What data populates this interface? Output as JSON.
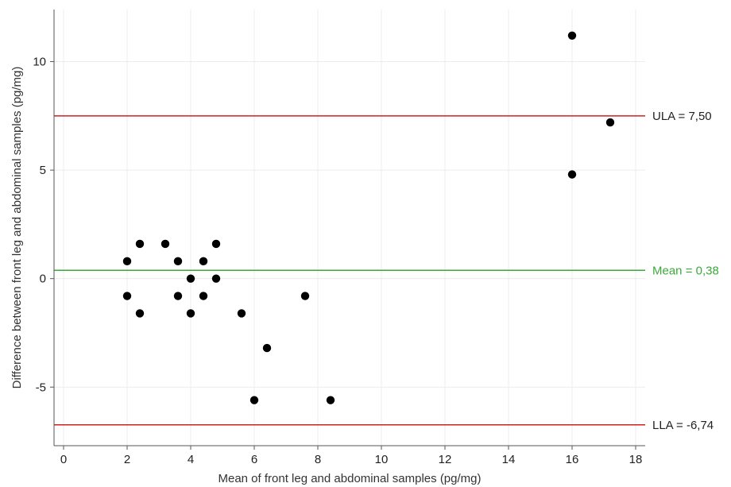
{
  "chart_data": {
    "type": "scatter",
    "title": "",
    "xlabel": "Mean of front leg and abdominal samples (pg/mg)",
    "ylabel": "Difference between front leg and abdominal samples (pg/mg)",
    "xlim": [
      -0.3,
      18.3
    ],
    "ylim": [
      -7.7,
      12.4
    ],
    "x_ticks": [
      0,
      2,
      4,
      6,
      8,
      10,
      12,
      14,
      16,
      18
    ],
    "y_ticks": [
      -5,
      0,
      5,
      10
    ],
    "x_tick_labels": [
      "0",
      "2",
      "4",
      "6",
      "8",
      "10",
      "12",
      "14",
      "16",
      "18"
    ],
    "y_tick_labels": [
      "-5",
      "0",
      "5",
      "10"
    ],
    "grid": true,
    "points": [
      {
        "x": 2.0,
        "y": 0.8
      },
      {
        "x": 2.0,
        "y": -0.8
      },
      {
        "x": 2.4,
        "y": 1.6
      },
      {
        "x": 2.4,
        "y": -1.6
      },
      {
        "x": 3.2,
        "y": 1.6
      },
      {
        "x": 3.6,
        "y": 0.8
      },
      {
        "x": 3.6,
        "y": -0.8
      },
      {
        "x": 4.0,
        "y": 0.0
      },
      {
        "x": 4.0,
        "y": -1.6
      },
      {
        "x": 4.4,
        "y": 0.8
      },
      {
        "x": 4.4,
        "y": -0.8
      },
      {
        "x": 4.8,
        "y": 1.6
      },
      {
        "x": 4.8,
        "y": 0.0
      },
      {
        "x": 5.6,
        "y": -1.6
      },
      {
        "x": 6.0,
        "y": -5.6
      },
      {
        "x": 6.4,
        "y": -3.2
      },
      {
        "x": 7.6,
        "y": -0.8
      },
      {
        "x": 8.4,
        "y": -5.6
      },
      {
        "x": 16.0,
        "y": 11.2
      },
      {
        "x": 16.0,
        "y": 4.8
      },
      {
        "x": 17.2,
        "y": 7.2
      }
    ],
    "reference_lines": [
      {
        "id": "ula",
        "label": "ULA = 7,50",
        "y": 7.5,
        "color": "#cc2222"
      },
      {
        "id": "mean",
        "label": "Mean = 0,38",
        "y": 0.38,
        "color": "#3aaa3a"
      },
      {
        "id": "lla",
        "label": "LLA = -6,74",
        "y": -6.74,
        "color": "#cc2222"
      }
    ],
    "colors": {
      "points": "#000000",
      "grid": "#ececec",
      "axis": "#555555",
      "ula_label": "#222222",
      "mean_label": "#3aaa3a",
      "lla_label": "#222222"
    }
  }
}
